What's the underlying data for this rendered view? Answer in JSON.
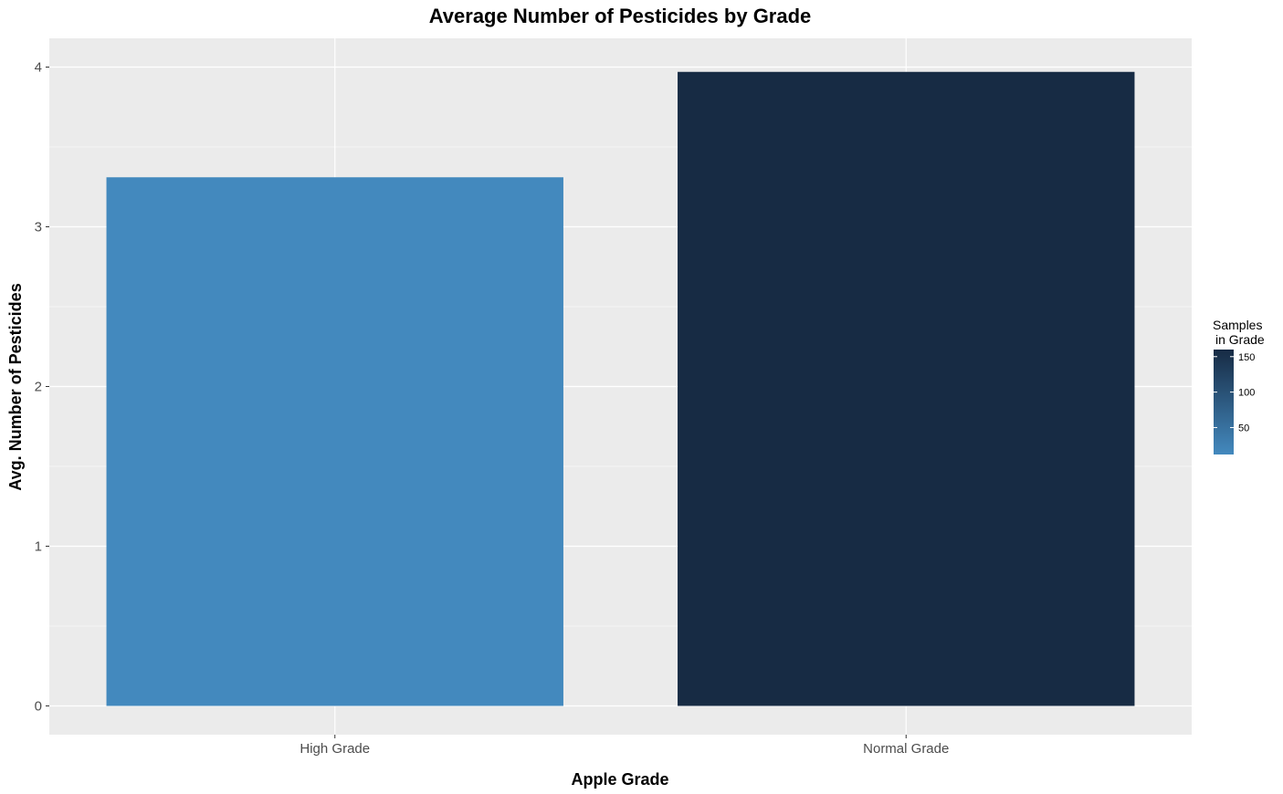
{
  "chart_data": {
    "type": "bar",
    "title": "Average Number of Pesticides by Grade",
    "xlabel": "Apple Grade",
    "ylabel": "Avg. Number of Pesticides",
    "categories": [
      "High Grade",
      "Normal Grade"
    ],
    "values": [
      3.31,
      3.97
    ],
    "fill_values": [
      12,
      160
    ],
    "ylim": [
      -0.18,
      4.18
    ],
    "yticks": [
      "0",
      "1",
      "2",
      "3",
      "4"
    ],
    "grid": true,
    "colors": {
      "panel": "#EBEBEB",
      "grid": "#FFFFFF",
      "low": "#4389BE",
      "high": "#172B44"
    },
    "legend": {
      "title_line1": "Samples",
      "title_line2": "in Grade",
      "placement": "right",
      "range": [
        12,
        160
      ],
      "breaks": [
        "50",
        "100",
        "150"
      ]
    }
  }
}
